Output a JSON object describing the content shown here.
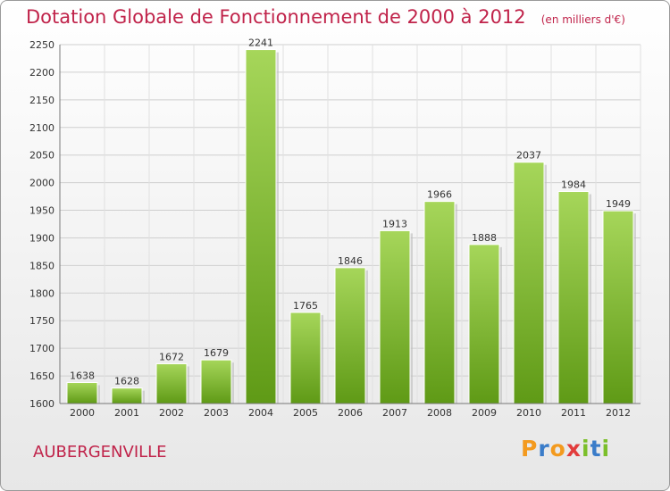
{
  "chart_data": {
    "type": "bar",
    "title": "Dotation Globale de Fonctionnement de 2000 à 2012",
    "subtitle": "(en milliers d'€)",
    "categories": [
      "2000",
      "2001",
      "2002",
      "2003",
      "2004",
      "2005",
      "2006",
      "2007",
      "2008",
      "2009",
      "2010",
      "2011",
      "2012"
    ],
    "values": [
      1638,
      1628,
      1672,
      1679,
      2241,
      1765,
      1846,
      1913,
      1966,
      1888,
      2037,
      1984,
      1949
    ],
    "ylim": [
      1600,
      2250
    ],
    "yticks": [
      "1600",
      "1650",
      "1700",
      "1750",
      "1800",
      "1850",
      "1900",
      "1950",
      "2000",
      "2050",
      "2100",
      "2150",
      "2200",
      "2250"
    ],
    "grid": true,
    "colors": {
      "bar_top": "#a6d65a",
      "bar_bottom": "#5f9a16",
      "title": "#c0234a"
    }
  },
  "commune": "AUBERGENVILLE",
  "logo": {
    "text": "Proxiti",
    "letters": [
      "P",
      "r",
      "o",
      "x",
      "i",
      "t",
      "i"
    ]
  }
}
